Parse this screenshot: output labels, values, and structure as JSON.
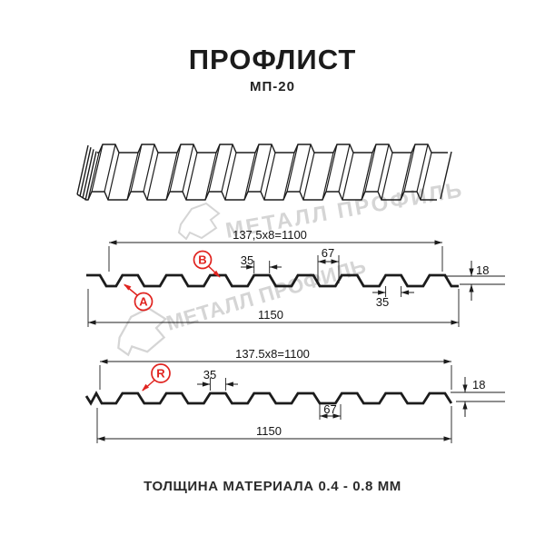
{
  "title": "ПРОФЛИСТ",
  "subtitle": "МП-20",
  "footer": "ТОЛЩИНА МАТЕРИАЛА 0.4 - 0.8 ММ",
  "watermark": {
    "text": "МЕТАЛЛ ПРОФИЛЬ"
  },
  "colors": {
    "accent_red": "#e0231f",
    "line": "#1c1c1c",
    "watermark": "#d5d5d5"
  },
  "section_top": {
    "width_total": "137,5x8=1100",
    "rib_top": "35",
    "rib_gap": "67",
    "height": "18",
    "overall": "1150",
    "rib_bottom": "35",
    "labels": {
      "a": "A",
      "b": "B"
    }
  },
  "section_bottom": {
    "width_total": "137.5x8=1100",
    "rib_top": "35",
    "rib_gap": "67",
    "height": "18",
    "overall": "1150",
    "label_r": "R"
  }
}
